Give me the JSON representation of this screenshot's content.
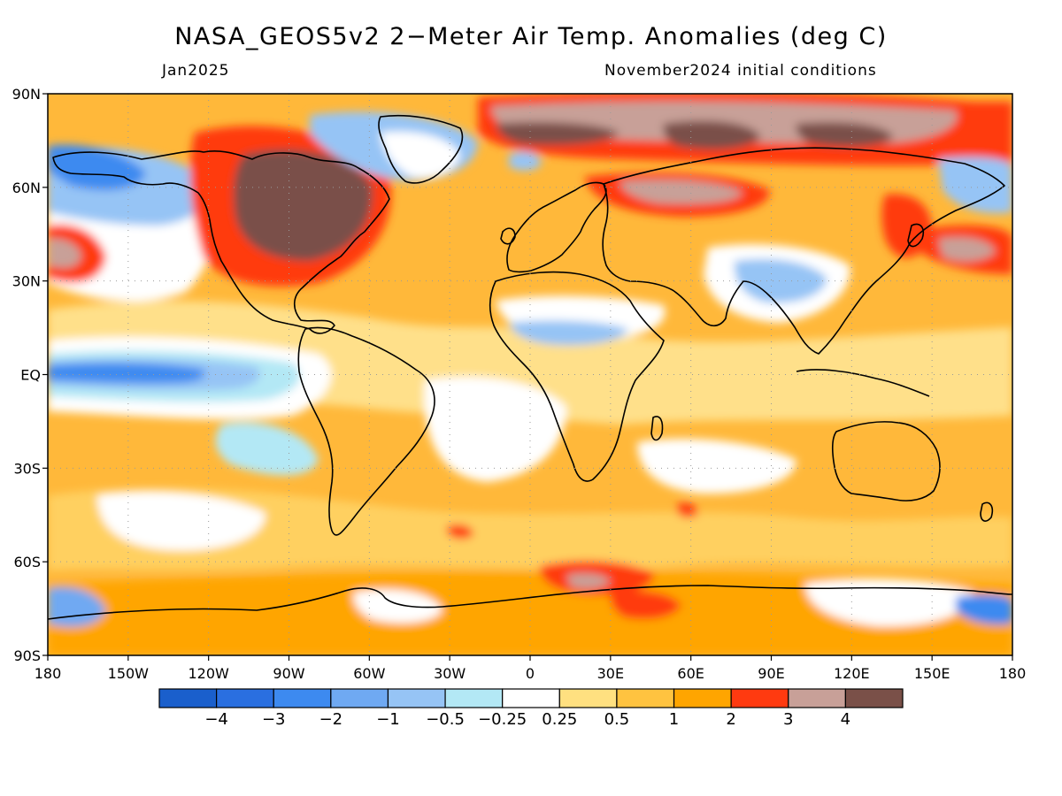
{
  "title": "NASA_GEOS5v2 2−Meter Air Temp. Anomalies (deg C)",
  "subtitle_left": "Jan2025",
  "subtitle_right": "November2024 initial conditions",
  "map": {
    "lon_range": [
      -180,
      180
    ],
    "lat_range": [
      -90,
      90
    ],
    "grid_dotted": true,
    "lat_ticks": [
      {
        "value": 90,
        "label": "90N"
      },
      {
        "value": 60,
        "label": "60N"
      },
      {
        "value": 30,
        "label": "30N"
      },
      {
        "value": 0,
        "label": "EQ"
      },
      {
        "value": -30,
        "label": "30S"
      },
      {
        "value": -60,
        "label": "60S"
      },
      {
        "value": -90,
        "label": "90S"
      }
    ],
    "lon_ticks": [
      {
        "value": -180,
        "label": "180"
      },
      {
        "value": -150,
        "label": "150W"
      },
      {
        "value": -120,
        "label": "120W"
      },
      {
        "value": -90,
        "label": "90W"
      },
      {
        "value": -60,
        "label": "60W"
      },
      {
        "value": -30,
        "label": "30W"
      },
      {
        "value": 0,
        "label": "0"
      },
      {
        "value": 30,
        "label": "30E"
      },
      {
        "value": 60,
        "label": "60E"
      },
      {
        "value": 90,
        "label": "90E"
      },
      {
        "value": 120,
        "label": "120E"
      },
      {
        "value": 150,
        "label": "150E"
      },
      {
        "value": 180,
        "label": "180"
      }
    ]
  },
  "colorbar": {
    "colors": [
      "#1a5fcc",
      "#2a6fe0",
      "#3d8af0",
      "#6fa9f2",
      "#96c4f5",
      "#b3e8f5",
      "#ffffff",
      "#ffe080",
      "#ffc340",
      "#ffa500",
      "#ff3a10",
      "#c8a098",
      "#7a5048"
    ],
    "labels": [
      "−4",
      "−3",
      "−2",
      "−1",
      "−0.5",
      "−0.25",
      "0.25",
      "0.5",
      "1",
      "2",
      "3",
      "4"
    ]
  }
}
